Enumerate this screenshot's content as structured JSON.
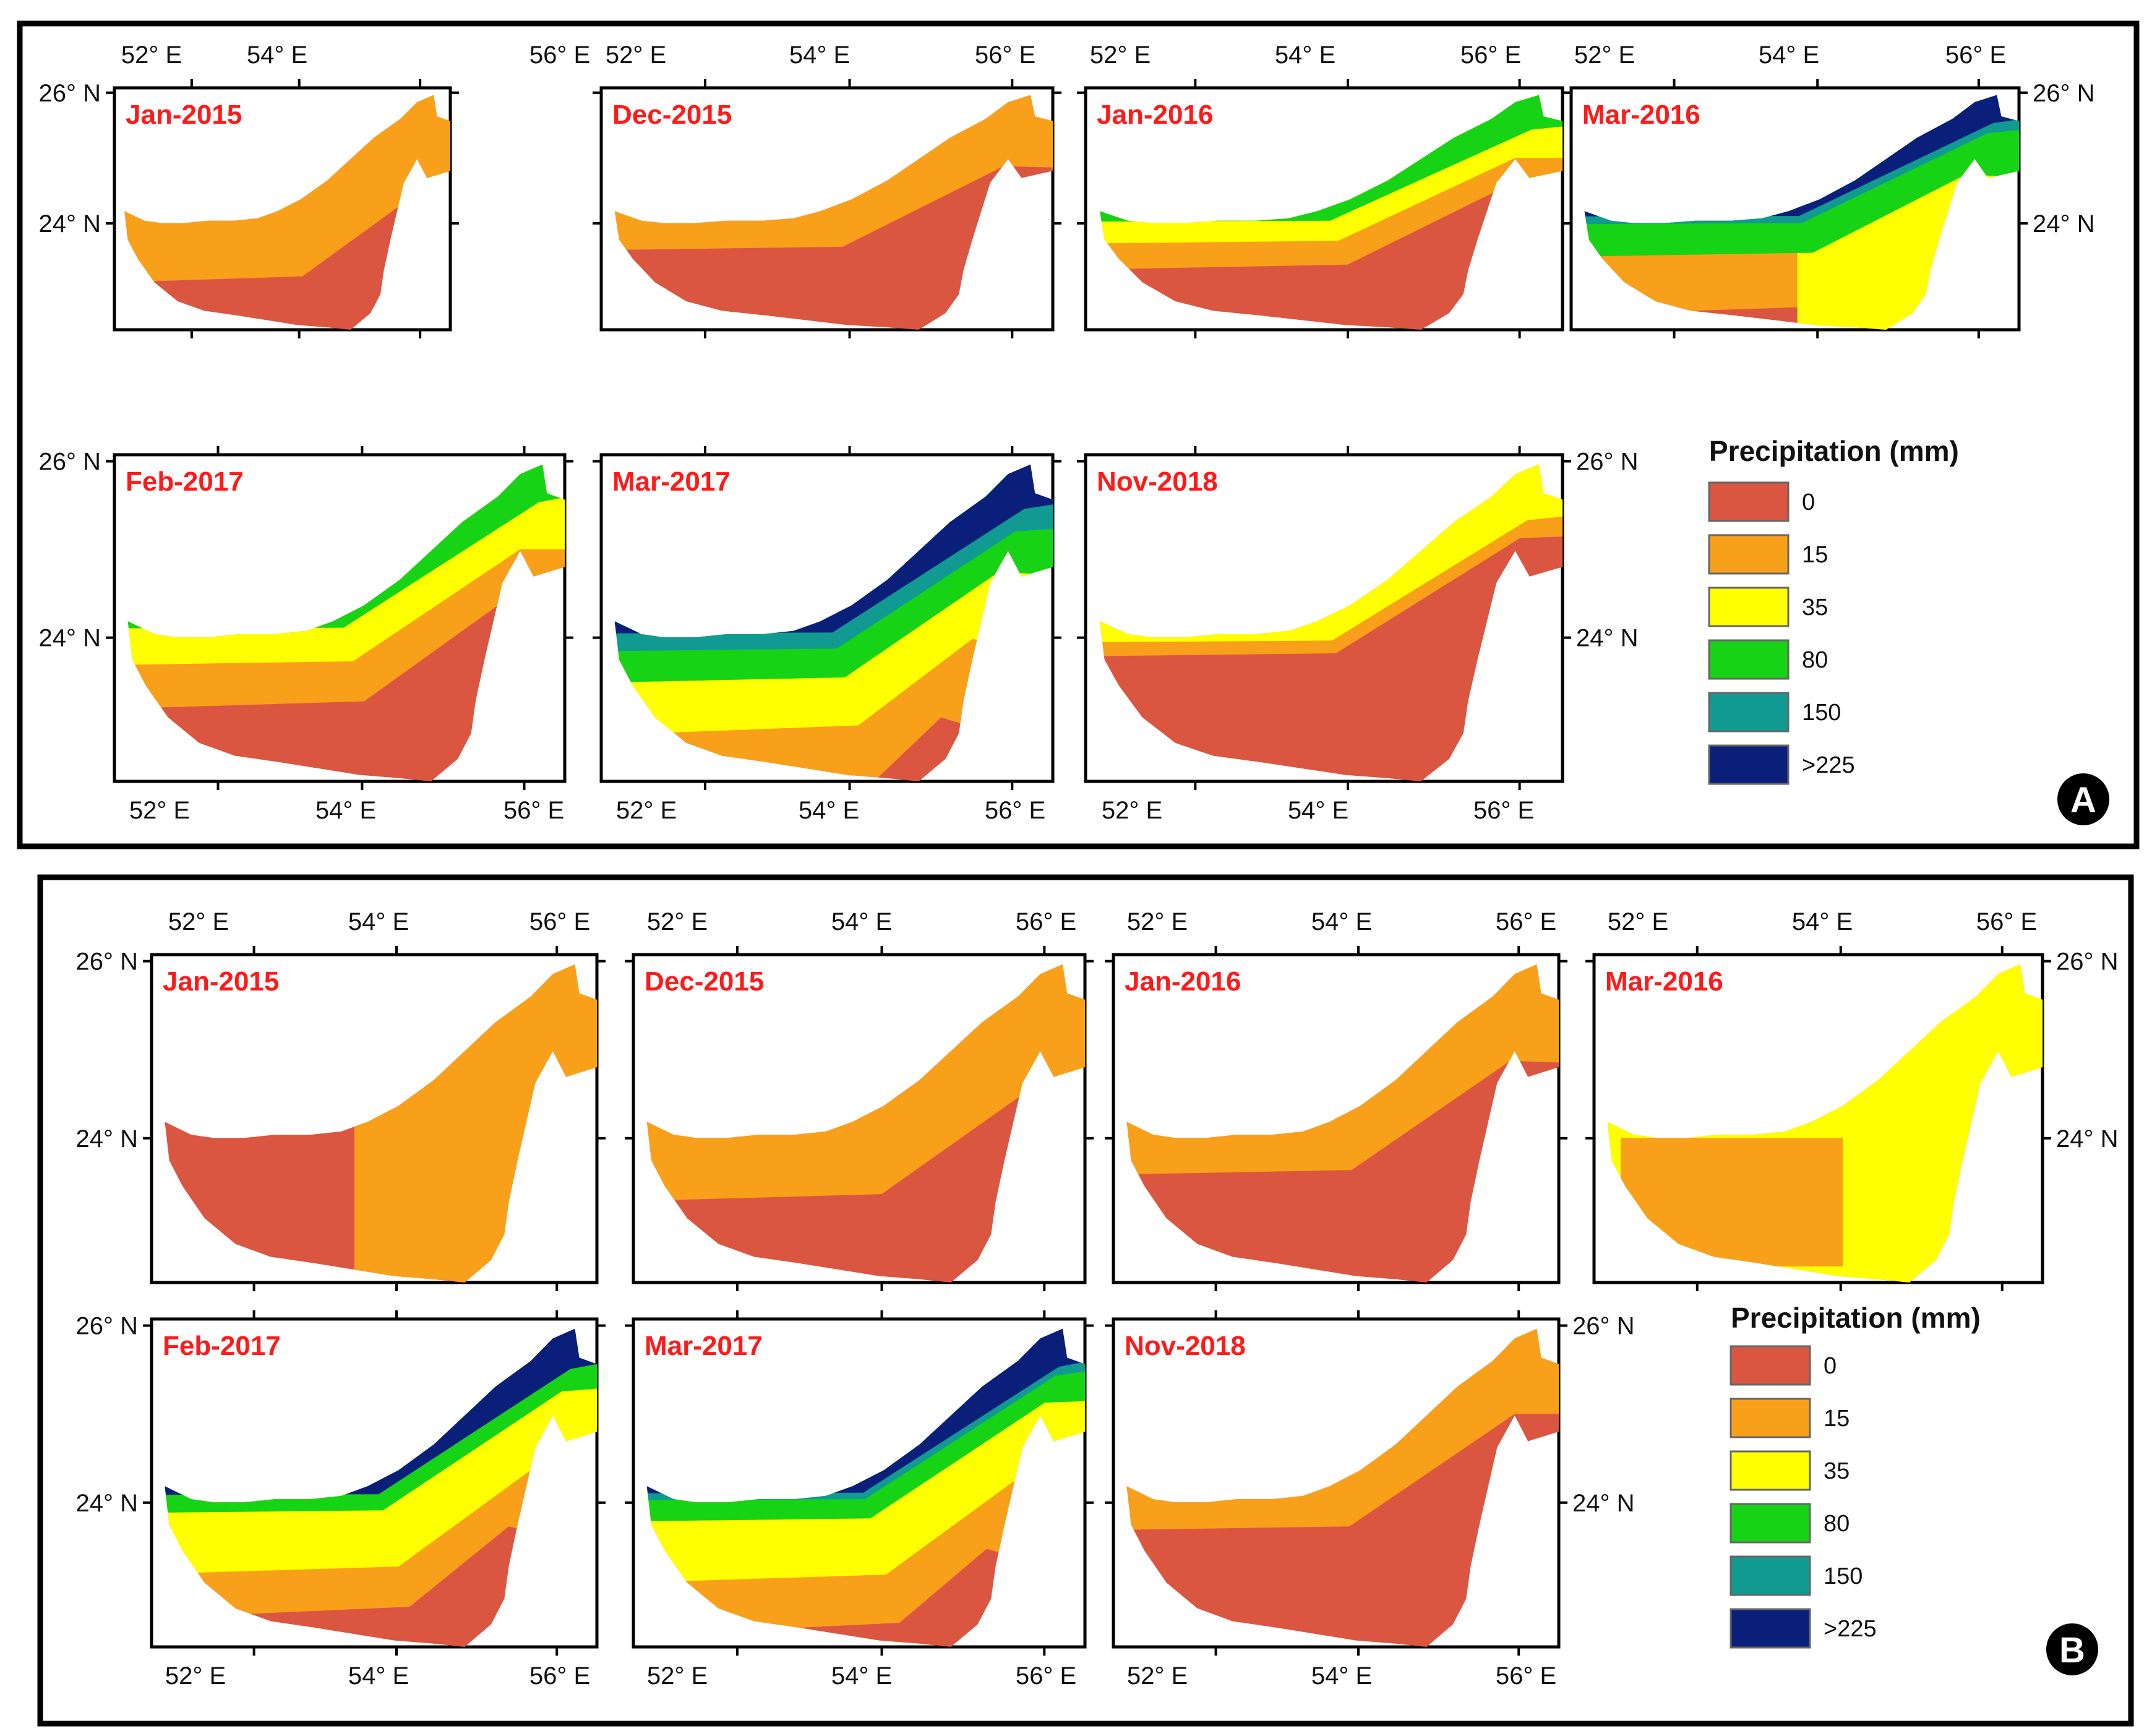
{
  "colors": {
    "c0": "#db5640",
    "c15": "#f9a01b",
    "c35": "#ffff00",
    "c80": "#16d316",
    "c150": "#109a92",
    "c225": "#0a1f7a",
    "title_red": "#ff1a1a"
  },
  "axis_labels": {
    "lon": [
      "52° E",
      "54° E",
      "56° E"
    ],
    "lat": [
      "26° N",
      "24° N"
    ]
  },
  "legend": {
    "title": "Precipitation (mm)",
    "classes": [
      {
        "label": "0",
        "color": "#db5640"
      },
      {
        "label": "15",
        "color": "#f9a01b"
      },
      {
        "label": "35",
        "color": "#ffff00"
      },
      {
        "label": "80",
        "color": "#16d316"
      },
      {
        "label": "150",
        "color": "#109a92"
      },
      {
        "label": ">225",
        "color": "#0a1f7a"
      }
    ]
  },
  "panels": [
    {
      "badge": "A",
      "maps": [
        {
          "title": "Jan-2015",
          "zones": [
            {
              "c": "c15",
              "coast": 0.55
            }
          ]
        },
        {
          "title": "Dec-2015",
          "zones": [
            {
              "c": "c15",
              "coast": 0.3
            }
          ]
        },
        {
          "title": "Jan-2016",
          "zones": [
            {
              "c": "c15",
              "coast": 0.45
            },
            {
              "c": "c35",
              "coast": 0.25
            },
            {
              "c": "c80",
              "coast": 0.08
            }
          ]
        },
        {
          "title": "Mar-2016",
          "zones": [
            {
              "c": "c15",
              "coast": 0.8
            },
            {
              "c": "c35",
              "east": 0.5
            },
            {
              "c": "c80",
              "coast": 0.35
            },
            {
              "c": "c150",
              "coast": 0.1
            },
            {
              "c": "c225",
              "coast": 0.04
            }
          ]
        },
        {
          "title": "Feb-2017",
          "zones": [
            {
              "c": "c15",
              "coast": 0.5
            },
            {
              "c": "c35",
              "coast": 0.25
            },
            {
              "c": "c80",
              "coast": 0.04
            }
          ]
        },
        {
          "title": "Mar-2017",
          "zones": [
            {
              "c": "c15",
              "coast": 1.0
            },
            {
              "c": "c35",
              "coast": 0.65
            },
            {
              "c": "c80",
              "coast": 0.35
            },
            {
              "c": "c150",
              "coast": 0.17
            },
            {
              "c": "c225",
              "coast": 0.07
            }
          ]
        },
        {
          "title": "Nov-2018",
          "zones": [
            {
              "c": "c15",
              "coast": 0.2
            },
            {
              "c": "c35",
              "coast": 0.12
            }
          ]
        }
      ]
    },
    {
      "badge": "B",
      "maps": [
        {
          "title": "Jan-2015",
          "zones": [
            {
              "c": "c15",
              "east": 0.55
            }
          ]
        },
        {
          "title": "Dec-2015",
          "zones": [
            {
              "c": "c15",
              "coast": 0.45
            }
          ]
        },
        {
          "title": "Jan-2016",
          "zones": [
            {
              "c": "c15",
              "coast": 0.3
            }
          ]
        },
        {
          "title": "Mar-2016",
          "zones": [
            {
              "c": "c35",
              "all": 1
            },
            {
              "c": "c15",
              "southwest": 0.5
            }
          ]
        },
        {
          "title": "Feb-2017",
          "zones": [
            {
              "c": "c15",
              "coast": 0.75
            },
            {
              "c": "c35",
              "coast": 0.5
            },
            {
              "c": "c80",
              "coast": 0.15
            },
            {
              "c": "c225",
              "coast": 0.05
            }
          ]
        },
        {
          "title": "Mar-2017",
          "zones": [
            {
              "c": "c15",
              "coast": 0.85
            },
            {
              "c": "c35",
              "coast": 0.55
            },
            {
              "c": "c80",
              "coast": 0.2
            },
            {
              "c": "c150",
              "coast": 0.08
            },
            {
              "c": "c225",
              "coast": 0.04
            }
          ]
        },
        {
          "title": "Nov-2018",
          "zones": [
            {
              "c": "c15",
              "coast": 0.25
            }
          ]
        }
      ]
    }
  ]
}
